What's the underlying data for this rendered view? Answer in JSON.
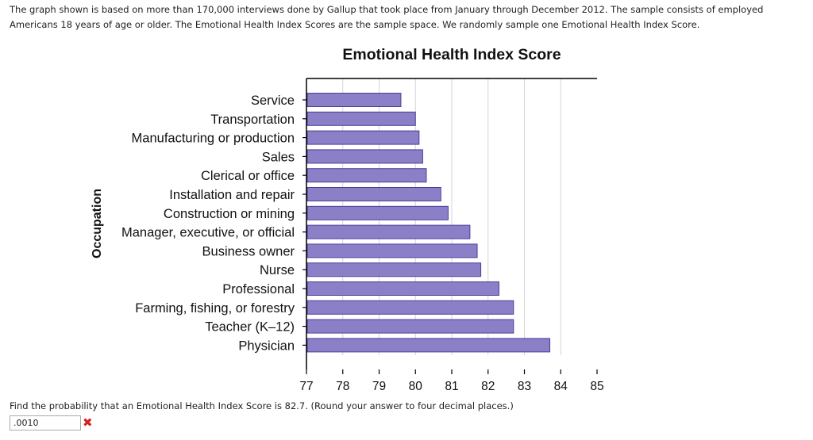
{
  "intro_text": "The graph shown is based on more than 170,000 interviews done by Gallup that took place from January through December 2012. The sample consists of employed Americans 18 years of age or older. The Emotional Health Index Scores are the sample space. We randomly sample one Emotional Health Index Score.",
  "question": {
    "text": "Find the probability that an Emotional Health Index Score is 82.7. (Round your answer to four decimal places.)",
    "answer_value": ".0010",
    "status_icon": "red-x-icon",
    "status_glyph": "✖"
  },
  "chart_data": {
    "type": "bar",
    "orientation": "horizontal",
    "title": "Emotional Health Index Score",
    "xlabel": "",
    "ylabel": "Occupation",
    "categories": [
      "Service",
      "Transportation",
      "Manufacturing or production",
      "Sales",
      "Clerical or office",
      "Installation and repair",
      "Construction or mining",
      "Manager, executive, or official",
      "Business owner",
      "Nurse",
      "Professional",
      "Farming, fishing, or forestry",
      "Teacher (K–12)",
      "Physician"
    ],
    "values": [
      79.6,
      80.0,
      80.1,
      80.2,
      80.3,
      80.7,
      80.9,
      81.5,
      81.7,
      81.8,
      82.3,
      82.7,
      82.7,
      83.7
    ],
    "xlim": [
      77,
      85
    ],
    "ticks": [
      "77",
      "78",
      "79",
      "80",
      "81",
      "82",
      "83",
      "84",
      "85"
    ],
    "grid": "vertical",
    "bar_color": "#8b7fc8",
    "bar_edge_color": "#4a3f9a"
  }
}
